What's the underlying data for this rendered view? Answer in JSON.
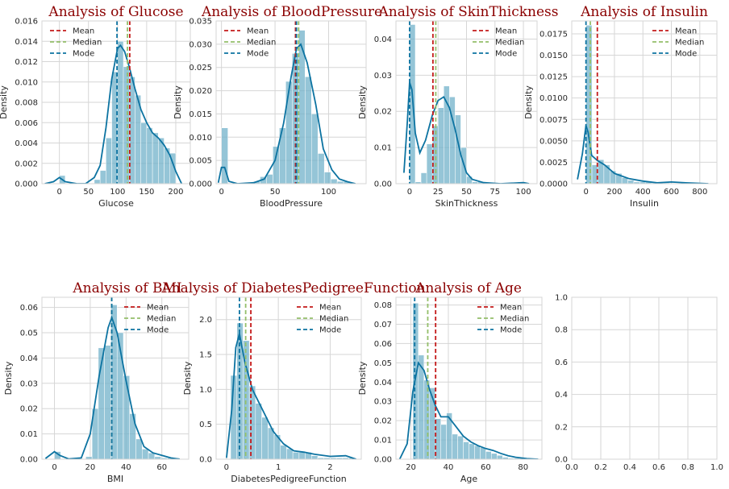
{
  "chart_data": [
    {
      "type": "histogram+kde",
      "title": "Analysis of Glucose",
      "xlabel": "Glucose",
      "ylabel": "Density",
      "xlim": [
        -30,
        225
      ],
      "ylim": [
        0,
        0.016
      ],
      "xticks": [
        0,
        50,
        100,
        150,
        200
      ],
      "yticks": [
        0,
        0.002,
        0.004,
        0.006,
        0.008,
        0.01,
        0.012,
        0.014,
        0.016
      ],
      "ytick_labels": [
        "0.000",
        "0.002",
        "0.004",
        "0.006",
        "0.008",
        "0.010",
        "0.012",
        "0.014",
        "0.016"
      ],
      "bin_edges": [
        0,
        10,
        20,
        30,
        40,
        50,
        60,
        70,
        80,
        90,
        100,
        110,
        120,
        130,
        140,
        150,
        160,
        170,
        180,
        190,
        200
      ],
      "hist": [
        0.0008,
        0,
        0,
        0,
        0,
        0,
        0.0004,
        0.0013,
        0.0045,
        0.011,
        0.014,
        0.0115,
        0.0105,
        0.0087,
        0.006,
        0.0055,
        0.005,
        0.0045,
        0.0035,
        0.003
      ],
      "kde": [
        [
          -25,
          0
        ],
        [
          -10,
          0.0002
        ],
        [
          0,
          0.0006
        ],
        [
          10,
          0.0002
        ],
        [
          30,
          0
        ],
        [
          45,
          0
        ],
        [
          60,
          0.0006
        ],
        [
          70,
          0.0018
        ],
        [
          80,
          0.0055
        ],
        [
          90,
          0.0103
        ],
        [
          100,
          0.0133
        ],
        [
          105,
          0.0136
        ],
        [
          112,
          0.013
        ],
        [
          120,
          0.0115
        ],
        [
          130,
          0.0093
        ],
        [
          140,
          0.0073
        ],
        [
          150,
          0.006
        ],
        [
          160,
          0.005
        ],
        [
          170,
          0.0045
        ],
        [
          180,
          0.0038
        ],
        [
          190,
          0.0028
        ],
        [
          200,
          0.0012
        ],
        [
          210,
          0
        ]
      ],
      "mean": 120.9,
      "median": 117,
      "mode": 99,
      "legend": [
        "Mean",
        "Median",
        "Mode"
      ],
      "legend_loc": "upper left"
    },
    {
      "type": "histogram+kde",
      "title": "Analysis of BloodPressure",
      "xlabel": "BloodPressure",
      "ylabel": "Density",
      "xlim": [
        -5,
        135
      ],
      "ylim": [
        0,
        0.035
      ],
      "xticks": [
        0,
        50,
        100
      ],
      "yticks": [
        0,
        0.005,
        0.01,
        0.015,
        0.02,
        0.025,
        0.03,
        0.035
      ],
      "ytick_labels": [
        "0.000",
        "0.005",
        "0.010",
        "0.015",
        "0.020",
        "0.025",
        "0.030",
        "0.035"
      ],
      "bin_edges": [
        0,
        6,
        12,
        18,
        24,
        30,
        36,
        42,
        48,
        54,
        60,
        66,
        72,
        78,
        84,
        90,
        96,
        102,
        108,
        114,
        120
      ],
      "hist": [
        0.012,
        0,
        0,
        0,
        0.0002,
        0.0005,
        0.0015,
        0.002,
        0.008,
        0.012,
        0.022,
        0.028,
        0.033,
        0.023,
        0.015,
        0.0065,
        0.0025,
        0.001,
        0.0005,
        0.0005
      ],
      "kde": [
        [
          -3,
          0.0002
        ],
        [
          0,
          0.0035
        ],
        [
          3,
          0.0035
        ],
        [
          7,
          0.0005
        ],
        [
          15,
          0
        ],
        [
          30,
          0.0002
        ],
        [
          40,
          0.001
        ],
        [
          50,
          0.005
        ],
        [
          58,
          0.013
        ],
        [
          65,
          0.023
        ],
        [
          70,
          0.029
        ],
        [
          74,
          0.03
        ],
        [
          80,
          0.026
        ],
        [
          88,
          0.017
        ],
        [
          95,
          0.0075
        ],
        [
          103,
          0.003
        ],
        [
          110,
          0.001
        ],
        [
          118,
          0.0004
        ],
        [
          125,
          0
        ]
      ],
      "mean": 69.1,
      "median": 72,
      "mode": 70,
      "legend": [
        "Mean",
        "Median",
        "Mode"
      ],
      "legend_loc": "upper left"
    },
    {
      "type": "histogram+kde",
      "title": "Analysis of SkinThickness",
      "xlabel": "SkinThickness",
      "ylabel": "Density",
      "xlim": [
        -12,
        112
      ],
      "ylim": [
        0,
        0.045
      ],
      "xticks": [
        0,
        25,
        50,
        75,
        100
      ],
      "yticks": [
        0,
        0.01,
        0.02,
        0.03,
        0.04
      ],
      "ytick_labels": [
        "0.00",
        "0.01",
        "0.02",
        "0.03",
        "0.04"
      ],
      "bin_edges": [
        0,
        5,
        10,
        15,
        20,
        25,
        30,
        35,
        40,
        45,
        50,
        55,
        60,
        65,
        70,
        75,
        80,
        85,
        90,
        95,
        100
      ],
      "hist": [
        0.044,
        0.0005,
        0.003,
        0.011,
        0.016,
        0.021,
        0.027,
        0.024,
        0.019,
        0.01,
        0.002,
        0.0005,
        0.0005,
        0,
        0,
        0,
        0,
        0,
        0,
        0.0005
      ],
      "kde": [
        [
          -5,
          0.003
        ],
        [
          -2,
          0.017
        ],
        [
          0,
          0.028
        ],
        [
          2,
          0.026
        ],
        [
          5,
          0.014
        ],
        [
          9,
          0.0085
        ],
        [
          14,
          0.012
        ],
        [
          20,
          0.019
        ],
        [
          25,
          0.023
        ],
        [
          30,
          0.024
        ],
        [
          35,
          0.021
        ],
        [
          40,
          0.015
        ],
        [
          45,
          0.008
        ],
        [
          50,
          0.003
        ],
        [
          55,
          0.0012
        ],
        [
          65,
          0.0003
        ],
        [
          80,
          0
        ],
        [
          100,
          0.0003
        ],
        [
          105,
          0
        ]
      ],
      "mean": 20.5,
      "median": 23,
      "mode": 0,
      "legend": [
        "Mean",
        "Median",
        "Mode"
      ],
      "legend_loc": "upper right"
    },
    {
      "type": "histogram+kde",
      "title": "Analysis of Insulin",
      "xlabel": "Insulin",
      "ylabel": "Density",
      "xlim": [
        -100,
        920
      ],
      "ylim": [
        0,
        0.019
      ],
      "xticks": [
        0,
        200,
        400,
        600,
        800
      ],
      "yticks": [
        0,
        0.0025,
        0.005,
        0.0075,
        0.01,
        0.0125,
        0.015,
        0.0175
      ],
      "ytick_labels": [
        "0.0000",
        "0.0025",
        "0.0050",
        "0.0075",
        "0.0100",
        "0.0125",
        "0.0150",
        "0.0175"
      ],
      "bin_edges": [
        0,
        42,
        84,
        126,
        168,
        210,
        252,
        294,
        336,
        378,
        420,
        462,
        504,
        546,
        588,
        630,
        672,
        714,
        756,
        798,
        840
      ],
      "hist": [
        0.0185,
        0.0022,
        0.0028,
        0.0022,
        0.0015,
        0.0012,
        0.0007,
        0.0004,
        0.0002,
        0.0002,
        0.0002,
        0.0001,
        0.0001,
        0.0001,
        0,
        0,
        0,
        0,
        0,
        0.0001
      ],
      "kde": [
        [
          -60,
          0.0005
        ],
        [
          -25,
          0.0035
        ],
        [
          0,
          0.0068
        ],
        [
          15,
          0.006
        ],
        [
          40,
          0.0033
        ],
        [
          80,
          0.0027
        ],
        [
          130,
          0.0022
        ],
        [
          200,
          0.0012
        ],
        [
          300,
          0.0006
        ],
        [
          400,
          0.0003
        ],
        [
          500,
          0.0001
        ],
        [
          600,
          0.0002
        ],
        [
          700,
          0.0001
        ],
        [
          860,
          0
        ]
      ],
      "mean": 79.8,
      "median": 30.5,
      "mode": 0,
      "legend": [
        "Mean",
        "Median",
        "Mode"
      ],
      "legend_loc": "upper right"
    },
    {
      "type": "histogram+kde",
      "title": "Analysis of BMI",
      "xlabel": "BMI",
      "ylabel": "Density",
      "xlim": [
        -7,
        75
      ],
      "ylim": [
        0,
        0.064
      ],
      "xticks": [
        0,
        20,
        40,
        60
      ],
      "yticks": [
        0,
        0.01,
        0.02,
        0.03,
        0.04,
        0.05,
        0.06
      ],
      "ytick_labels": [
        "0.00",
        "0.01",
        "0.02",
        "0.03",
        "0.04",
        "0.05",
        "0.06"
      ],
      "bin_edges": [
        0,
        3.5,
        7,
        10.5,
        14,
        17.5,
        21,
        24.5,
        28,
        31.5,
        35,
        38.5,
        42,
        45.5,
        49,
        52.5,
        56,
        59.5,
        63,
        66.5,
        70
      ],
      "hist": [
        0.003,
        0,
        0,
        0,
        0,
        0.001,
        0.02,
        0.044,
        0.045,
        0.061,
        0.05,
        0.033,
        0.018,
        0.008,
        0.004,
        0.0025,
        0.001,
        0.0005,
        0.0005,
        0.0005
      ],
      "kde": [
        [
          -5,
          0.0003
        ],
        [
          0,
          0.003
        ],
        [
          3,
          0.0015
        ],
        [
          8,
          0.0001
        ],
        [
          15,
          0.0005
        ],
        [
          20,
          0.01
        ],
        [
          25,
          0.033
        ],
        [
          30,
          0.052
        ],
        [
          32,
          0.056
        ],
        [
          35,
          0.05
        ],
        [
          40,
          0.031
        ],
        [
          45,
          0.014
        ],
        [
          50,
          0.005
        ],
        [
          55,
          0.0025
        ],
        [
          60,
          0.0015
        ],
        [
          65,
          0.0005
        ],
        [
          70,
          0
        ]
      ],
      "mean": 32.0,
      "median": 32.0,
      "mode": 32.0,
      "legend": [
        "Mean",
        "Median",
        "Mode"
      ],
      "legend_loc": "upper right"
    },
    {
      "type": "histogram+kde",
      "title": "Analysis of DiabetesPedigreeFunction",
      "xlabel": "DiabetesPedigreeFunction",
      "ylabel": "Density",
      "xlim": [
        -0.2,
        2.6
      ],
      "ylim": [
        0,
        2.32
      ],
      "xticks": [
        0,
        1,
        2
      ],
      "yticks": [
        0,
        0.5,
        1.0,
        1.5,
        2.0
      ],
      "ytick_labels": [
        "0.0",
        "0.5",
        "1.0",
        "1.5",
        "2.0"
      ],
      "bin_edges": [
        0.08,
        0.2,
        0.32,
        0.44,
        0.56,
        0.68,
        0.8,
        0.92,
        1.04,
        1.16,
        1.28,
        1.4,
        1.52,
        1.64,
        1.76,
        1.88,
        2.0,
        2.12,
        2.24,
        2.36,
        2.48
      ],
      "hist": [
        1.2,
        1.95,
        1.7,
        1.05,
        0.8,
        0.6,
        0.45,
        0.35,
        0.2,
        0.15,
        0.1,
        0.1,
        0.1,
        0.05,
        0.02,
        0.02,
        0.02,
        0.02,
        0.02,
        0.02
      ],
      "kde": [
        [
          0.0,
          0.02
        ],
        [
          0.1,
          0.7
        ],
        [
          0.18,
          1.6
        ],
        [
          0.25,
          1.8
        ],
        [
          0.35,
          1.4
        ],
        [
          0.5,
          1.0
        ],
        [
          0.7,
          0.7
        ],
        [
          0.9,
          0.4
        ],
        [
          1.1,
          0.22
        ],
        [
          1.3,
          0.12
        ],
        [
          1.5,
          0.1
        ],
        [
          1.7,
          0.07
        ],
        [
          2.0,
          0.04
        ],
        [
          2.3,
          0.05
        ],
        [
          2.5,
          0
        ]
      ],
      "mean": 0.47,
      "median": 0.37,
      "mode": 0.25,
      "legend": [
        "Mean",
        "Median",
        "Mode"
      ],
      "legend_loc": "upper right"
    },
    {
      "type": "histogram+kde",
      "title": "Analysis of Age",
      "xlabel": "Age",
      "ylabel": "Density",
      "xlim": [
        12,
        90
      ],
      "ylim": [
        0,
        0.084
      ],
      "xticks": [
        20,
        40,
        60,
        80
      ],
      "yticks": [
        0,
        0.01,
        0.02,
        0.03,
        0.04,
        0.05,
        0.06,
        0.07,
        0.08
      ],
      "ytick_labels": [
        "0.00",
        "0.01",
        "0.02",
        "0.03",
        "0.04",
        "0.05",
        "0.06",
        "0.07",
        "0.08"
      ],
      "bin_edges": [
        21,
        24,
        27,
        30,
        33,
        36,
        39,
        42,
        45,
        48,
        51,
        54,
        57,
        60,
        63,
        66,
        69,
        72,
        75,
        78,
        81
      ],
      "hist": [
        0.081,
        0.054,
        0.041,
        0.037,
        0.021,
        0.018,
        0.024,
        0.013,
        0.012,
        0.009,
        0.008,
        0.007,
        0.006,
        0.004,
        0.003,
        0.002,
        0.001,
        0.0005,
        0.0005,
        0.0005
      ],
      "kde": [
        [
          14,
          0
        ],
        [
          18,
          0.008
        ],
        [
          21,
          0.035
        ],
        [
          24,
          0.05
        ],
        [
          27,
          0.046
        ],
        [
          30,
          0.036
        ],
        [
          33,
          0.028
        ],
        [
          36,
          0.022
        ],
        [
          40,
          0.022
        ],
        [
          44,
          0.017
        ],
        [
          48,
          0.012
        ],
        [
          52,
          0.009
        ],
        [
          56,
          0.007
        ],
        [
          60,
          0.0055
        ],
        [
          64,
          0.0045
        ],
        [
          68,
          0.003
        ],
        [
          72,
          0.0018
        ],
        [
          76,
          0.001
        ],
        [
          82,
          0.0003
        ],
        [
          88,
          0
        ]
      ],
      "mean": 33.2,
      "median": 29,
      "mode": 22,
      "legend": [
        "Mean",
        "Median",
        "Mode"
      ],
      "legend_loc": "upper right"
    },
    {
      "type": "empty",
      "xlim": [
        0,
        1
      ],
      "ylim": [
        0,
        1
      ],
      "xticks": [
        0,
        0.2,
        0.4,
        0.6,
        0.8,
        1.0
      ],
      "xtick_labels": [
        "0.0",
        "0.2",
        "0.4",
        "0.6",
        "0.8",
        "1.0"
      ],
      "yticks": [
        0,
        0.2,
        0.4,
        0.6,
        0.8,
        1.0
      ],
      "ytick_labels": [
        "0.0",
        "0.2",
        "0.4",
        "0.6",
        "0.8",
        "1.0"
      ]
    }
  ],
  "colors": {
    "hist": "#72b1c9",
    "kde": "#0c73a1",
    "mean": "#c41a1a",
    "median": "#94bf6a",
    "mode": "#0c73a1",
    "title": "#8b0000",
    "grid": "#d6d6d6"
  }
}
